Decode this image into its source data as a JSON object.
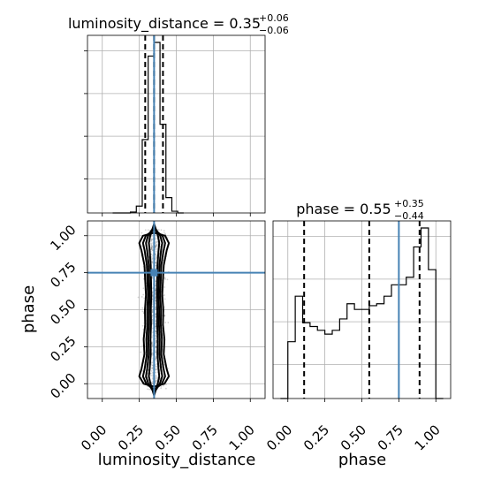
{
  "chart_data": {
    "type": "corner",
    "parameters": [
      "luminosity_distance",
      "phase"
    ],
    "colors": {
      "truth": "#4682b4",
      "histogram": "#000000",
      "grid": "#b0b0b0",
      "samples": "#555555"
    },
    "grid": true,
    "luminosity_distance": {
      "title_prefix": "luminosity_distance = 0.35",
      "title_upper": "+0.06",
      "title_lower": "−0.06",
      "median": 0.35,
      "quantiles": [
        0.29,
        0.35,
        0.41
      ],
      "truth": 0.35,
      "xlim": [
        -0.1,
        1.1
      ],
      "hist": {
        "bin_width": 0.04,
        "bin_starts": [
          0.07,
          0.11,
          0.15,
          0.19,
          0.23,
          0.27,
          0.31,
          0.35,
          0.39,
          0.43,
          0.47,
          0.51
        ],
        "counts": [
          0,
          0,
          0,
          0.5,
          4,
          43,
          92,
          100,
          52,
          9,
          1,
          0
        ]
      }
    },
    "phase": {
      "title_prefix": "phase = 0.55",
      "title_upper": "+0.35",
      "title_lower": "−0.44",
      "median": 0.55,
      "quantiles": [
        0.11,
        0.55,
        0.89
      ],
      "truth": 0.75,
      "xlim": [
        -0.1,
        1.1
      ],
      "hist": {
        "bin_width": 0.05,
        "bin_starts": [
          -0.05,
          0.0,
          0.05,
          0.1,
          0.15,
          0.2,
          0.25,
          0.3,
          0.35,
          0.4,
          0.45,
          0.5,
          0.55,
          0.6,
          0.65,
          0.7,
          0.75,
          0.8,
          0.85,
          0.9,
          0.95,
          1.0
        ],
        "counts": [
          0,
          30,
          54,
          40,
          38,
          36,
          34,
          36,
          42,
          50,
          47,
          47,
          49,
          50,
          54,
          60,
          60,
          64,
          80,
          90,
          68,
          0
        ]
      }
    },
    "joint": {
      "xlabel": "luminosity_distance",
      "ylabel": "phase",
      "xlim": [
        -0.1,
        1.1
      ],
      "ylim": [
        -0.1,
        1.1
      ],
      "truth": {
        "x": 0.35,
        "y": 0.75
      },
      "levels_halfwidth": [
        0.1,
        0.075,
        0.055,
        0.035
      ],
      "spine_y": [
        0.0,
        0.05,
        0.1,
        0.2,
        0.3,
        0.4,
        0.5,
        0.6,
        0.7,
        0.8,
        0.9,
        0.95,
        1.0
      ],
      "spine_width_factor": [
        0.7,
        1.0,
        0.85,
        0.65,
        0.7,
        0.6,
        0.62,
        0.55,
        0.6,
        0.65,
        0.85,
        1.0,
        0.75
      ]
    },
    "ticks": {
      "values": [
        0.0,
        0.25,
        0.5,
        0.75,
        1.0
      ],
      "labels": [
        "0.00",
        "0.25",
        "0.50",
        "0.75",
        "1.00"
      ]
    },
    "xlabel_left": "luminosity_distance",
    "xlabel_right": "phase"
  }
}
